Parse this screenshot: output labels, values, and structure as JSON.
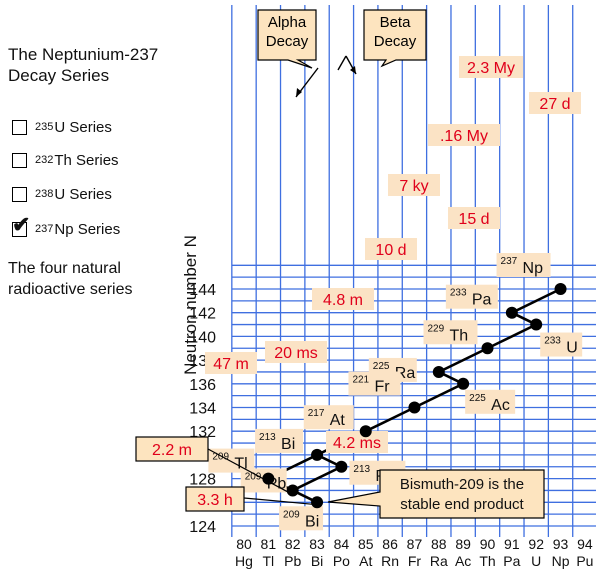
{
  "sidebar": {
    "title_line1": "The Neptunium-237",
    "title_line2": "Decay Series",
    "options": [
      {
        "mass": "235",
        "label": "U Series",
        "checked": false
      },
      {
        "mass": "232",
        "label": "Th Series",
        "checked": false
      },
      {
        "mass": "238",
        "label": "U Series",
        "checked": false
      },
      {
        "mass": "237",
        "label": "Np Series",
        "checked": true
      }
    ],
    "note_line1": "The four natural",
    "note_line2": "radioactive series"
  },
  "axes": {
    "ylabel": "Neutron number N",
    "x_ticks": [
      80,
      81,
      82,
      83,
      84,
      85,
      86,
      87,
      88,
      89,
      90,
      91,
      92,
      93,
      94
    ],
    "x_elements": [
      "Hg",
      "Tl",
      "Pb",
      "Bi",
      "Po",
      "At",
      "Rn",
      "Fr",
      "Ra",
      "Ac",
      "Th",
      "Pa",
      "U",
      "Np",
      "Pu"
    ],
    "y_ticks": [
      124,
      126,
      128,
      130,
      132,
      134,
      136,
      138,
      140,
      142,
      144
    ],
    "xlim": [
      80,
      94
    ],
    "ylim": [
      123,
      146
    ],
    "grid_color": "#3f6fe0"
  },
  "legend": {
    "alpha_line1": "Alpha",
    "alpha_line2": "Decay",
    "beta_line1": "Beta",
    "beta_line2": "Decay"
  },
  "nuclides": [
    {
      "mass": "237",
      "sym": "Np",
      "Z": 93,
      "N": 144
    },
    {
      "mass": "233",
      "sym": "Pa",
      "Z": 91,
      "N": 142
    },
    {
      "mass": "233",
      "sym": "U",
      "Z": 92,
      "N": 141
    },
    {
      "mass": "229",
      "sym": "Th",
      "Z": 90,
      "N": 139
    },
    {
      "mass": "225",
      "sym": "Ra",
      "Z": 88,
      "N": 137
    },
    {
      "mass": "225",
      "sym": "Ac",
      "Z": 89,
      "N": 136
    },
    {
      "mass": "221",
      "sym": "Fr",
      "Z": 87,
      "N": 134
    },
    {
      "mass": "217",
      "sym": "At",
      "Z": 85,
      "N": 132
    },
    {
      "mass": "213",
      "sym": "Bi",
      "Z": 83,
      "N": 130
    },
    {
      "mass": "213",
      "sym": "Po",
      "Z": 84,
      "N": 129
    },
    {
      "mass": "209",
      "sym": "Tl",
      "Z": 81,
      "N": 128
    },
    {
      "mass": "209",
      "sym": "Pb",
      "Z": 82,
      "N": 127
    },
    {
      "mass": "209",
      "sym": "Bi",
      "Z": 83,
      "N": 126
    }
  ],
  "decay_path": [
    [
      93,
      144
    ],
    [
      91,
      142
    ],
    [
      92,
      141
    ],
    [
      90,
      139
    ],
    [
      88,
      137
    ],
    [
      89,
      136
    ],
    [
      87,
      134
    ],
    [
      85,
      132
    ],
    [
      83,
      130
    ],
    [
      81,
      128
    ],
    [
      82,
      127
    ],
    [
      83,
      126
    ]
  ],
  "branch_path": [
    [
      83,
      130
    ],
    [
      84,
      129
    ],
    [
      82,
      127
    ]
  ],
  "half_lives": [
    "2.3 My",
    "27 d",
    ".16 My",
    "7 ky",
    "15 d",
    "10 d",
    "4.8 m",
    "20 ms",
    "47 m",
    "2.2 m",
    "4.2 ms",
    "3.3 h"
  ],
  "annotation": {
    "line1": "Bismuth-209 is the",
    "line2": "stable end product"
  },
  "colors": {
    "label_bg": "#fbe3c5",
    "box_bg": "#fde4bf",
    "half_life_text": "#e0001b"
  }
}
